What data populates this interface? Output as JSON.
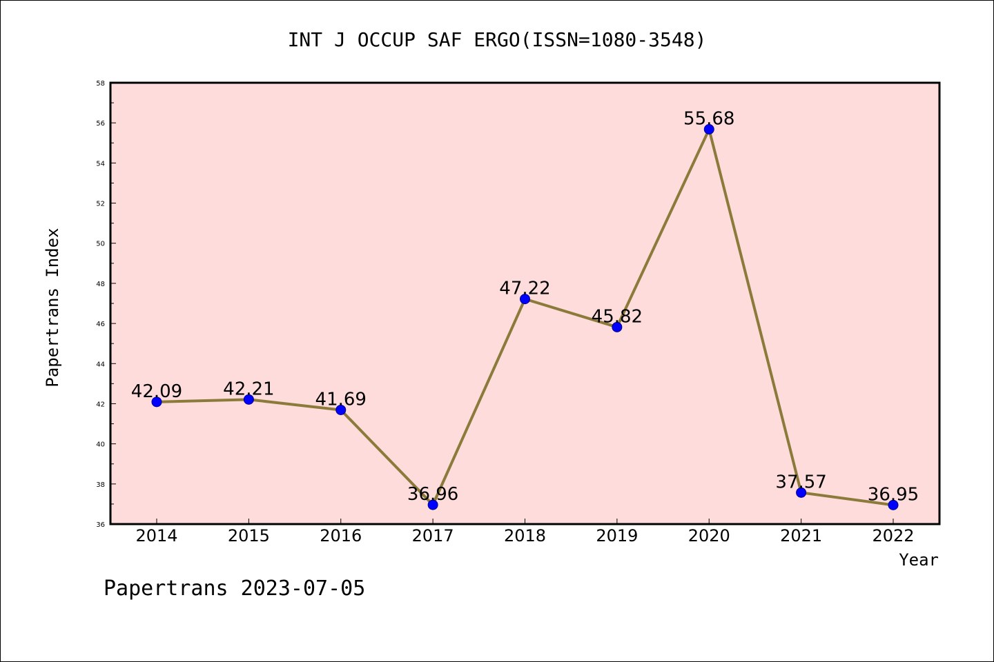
{
  "chart_data": {
    "type": "line",
    "title": "INT J OCCUP SAF ERGO(ISSN=1080-3548)",
    "xlabel": "Year",
    "ylabel": "Papertrans Index",
    "categories": [
      "2014",
      "2015",
      "2016",
      "2017",
      "2018",
      "2019",
      "2020",
      "2021",
      "2022"
    ],
    "series": [
      {
        "values": [
          42.09,
          42.21,
          41.69,
          36.96,
          47.22,
          45.82,
          55.68,
          37.57,
          36.95
        ],
        "labels": [
          "42.09",
          "42.21",
          "41.69",
          "36.96",
          "47.22",
          "45.82",
          "55.68",
          "37.57",
          "36.95"
        ]
      }
    ],
    "ylim": [
      36,
      58
    ],
    "yticks": [
      "36",
      "38",
      "40",
      "42",
      "44",
      "46",
      "48",
      "50",
      "52",
      "54",
      "56",
      "58"
    ],
    "grid": false,
    "legend": "none",
    "colors": {
      "line": "#8b7a3a",
      "marker": "#0000ff",
      "plot_background": "#fddcdb"
    }
  },
  "footer": "Papertrans 2023-07-05"
}
